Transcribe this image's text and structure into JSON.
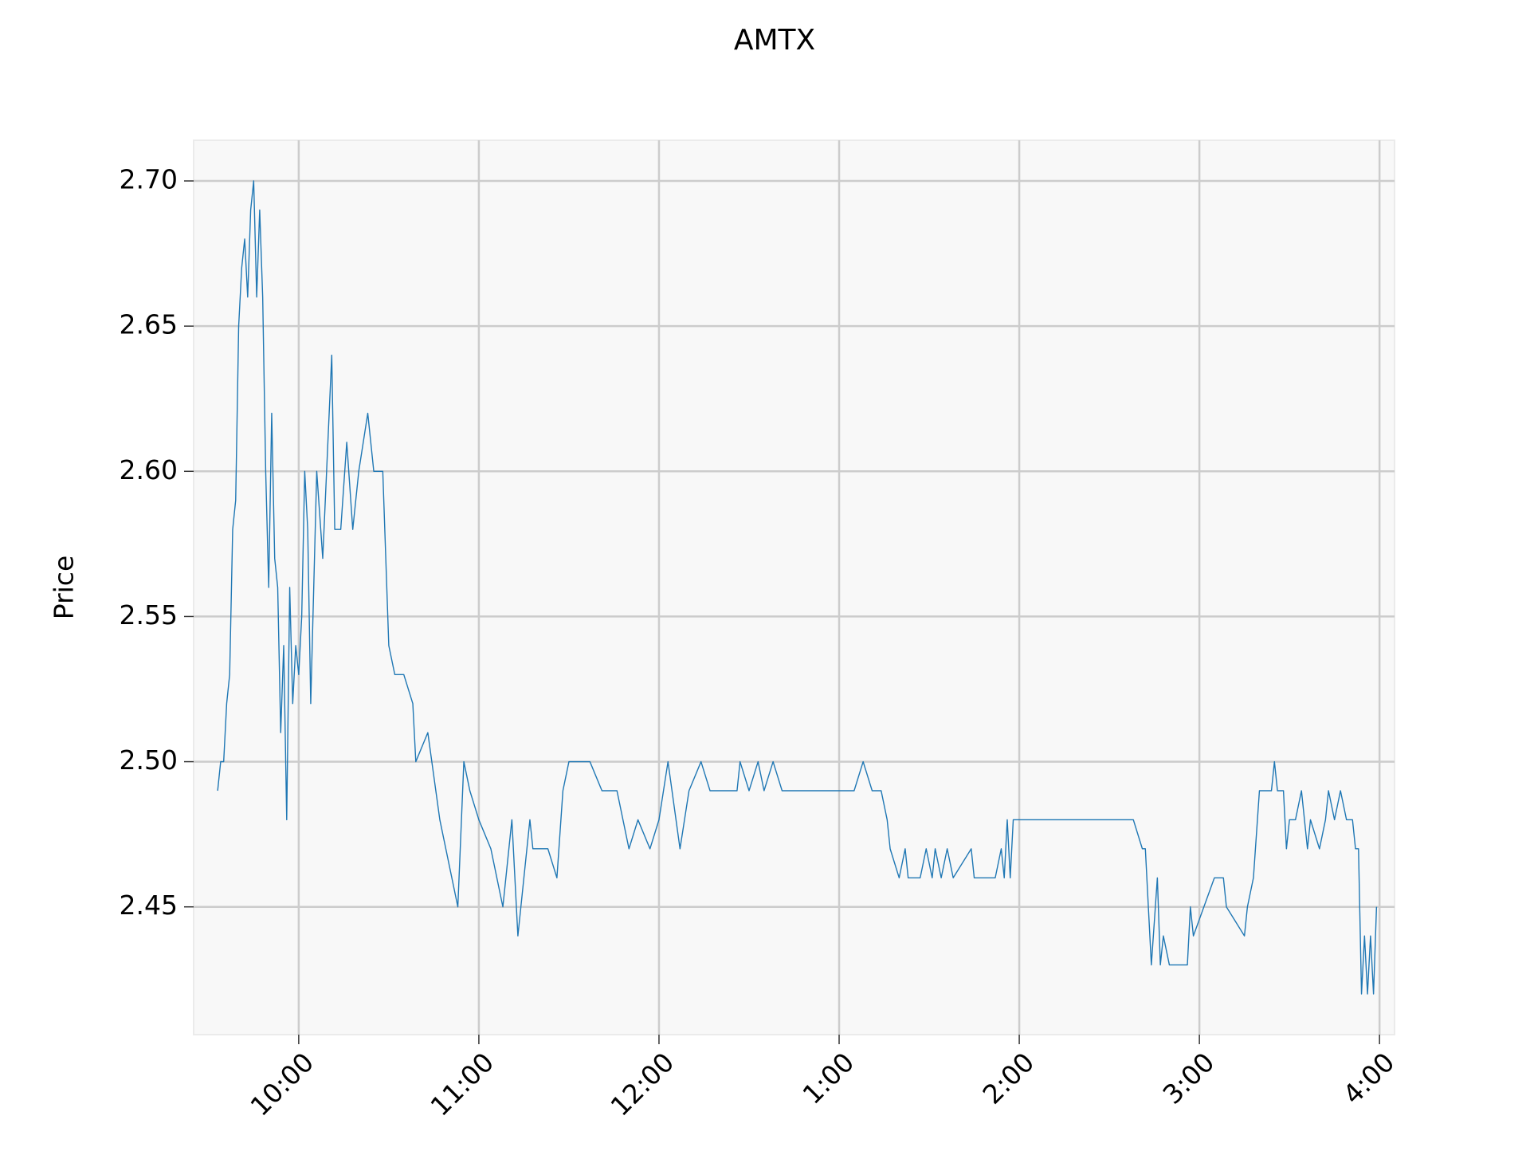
{
  "chart_data": {
    "type": "line",
    "title": "AMTX",
    "ylabel": "Price",
    "color": "#1f77b4",
    "grid": true,
    "xlim": [
      "9:25",
      "4:05"
    ],
    "xticks": [
      "10:00",
      "11:00",
      "12:00",
      "1:00",
      "2:00",
      "3:00",
      "4:00"
    ],
    "ylim": [
      2.406,
      2.714
    ],
    "yticks": [
      {
        "value": 2.45,
        "label": "2.45"
      },
      {
        "value": 2.5,
        "label": "2.50"
      },
      {
        "value": 2.55,
        "label": "2.55"
      },
      {
        "value": 2.6,
        "label": "2.60"
      },
      {
        "value": 2.65,
        "label": "2.65"
      },
      {
        "value": 2.7,
        "label": "2.70"
      }
    ],
    "x": [
      "9:33",
      "9:34",
      "9:35",
      "9:36",
      "9:37",
      "9:38",
      "9:39",
      "9:40",
      "9:41",
      "9:42",
      "9:43",
      "9:44",
      "9:45",
      "9:46",
      "9:47",
      "9:48",
      "9:49",
      "9:50",
      "9:51",
      "9:52",
      "9:53",
      "9:54",
      "9:55",
      "9:56",
      "9:57",
      "9:58",
      "9:59",
      "10:00",
      "10:01",
      "10:02",
      "10:03",
      "10:04",
      "10:06",
      "10:08",
      "10:11",
      "10:12",
      "10:14",
      "10:16",
      "10:18",
      "10:20",
      "10:23",
      "10:25",
      "10:28",
      "10:30",
      "10:32",
      "10:35",
      "10:38",
      "10:39",
      "10:43",
      "10:47",
      "10:49",
      "10:53",
      "10:55",
      "10:57",
      "11:00",
      "11:04",
      "11:08",
      "11:11",
      "11:13",
      "11:17",
      "11:18",
      "11:23",
      "11:26",
      "11:28",
      "11:30",
      "11:37",
      "11:41",
      "11:46",
      "11:50",
      "11:53",
      "11:57",
      "12:00",
      "12:03",
      "12:07",
      "12:10",
      "12:14",
      "12:17",
      "12:26",
      "12:27",
      "12:30",
      "12:33",
      "12:35",
      "12:38",
      "12:41",
      "1:05",
      "1:08",
      "1:11",
      "1:14",
      "1:16",
      "1:17",
      "1:20",
      "1:22",
      "1:23",
      "1:27",
      "1:29",
      "1:31",
      "1:32",
      "1:34",
      "1:36",
      "1:38",
      "1:44",
      "1:45",
      "1:52",
      "1:54",
      "1:55",
      "1:56",
      "1:57",
      "1:58",
      "2:38",
      "2:41",
      "2:42",
      "2:44",
      "2:46",
      "2:47",
      "2:48",
      "2:50",
      "2:56",
      "2:57",
      "2:58",
      "3:05",
      "3:08",
      "3:09",
      "3:15",
      "3:16",
      "3:18",
      "3:20",
      "3:24",
      "3:25",
      "3:26",
      "3:28",
      "3:29",
      "3:30",
      "3:32",
      "3:34",
      "3:36",
      "3:37",
      "3:40",
      "3:42",
      "3:43",
      "3:45",
      "3:47",
      "3:49",
      "3:51",
      "3:52",
      "3:53",
      "3:54",
      "3:55",
      "3:56",
      "3:57",
      "3:58",
      "3:59"
    ],
    "values": [
      2.49,
      2.5,
      2.5,
      2.52,
      2.53,
      2.58,
      2.59,
      2.65,
      2.67,
      2.68,
      2.66,
      2.69,
      2.7,
      2.66,
      2.69,
      2.66,
      2.6,
      2.56,
      2.62,
      2.57,
      2.56,
      2.51,
      2.54,
      2.48,
      2.56,
      2.52,
      2.54,
      2.53,
      2.55,
      2.6,
      2.58,
      2.52,
      2.6,
      2.57,
      2.64,
      2.58,
      2.58,
      2.61,
      2.58,
      2.6,
      2.62,
      2.6,
      2.6,
      2.54,
      2.53,
      2.53,
      2.52,
      2.5,
      2.51,
      2.48,
      2.47,
      2.45,
      2.5,
      2.49,
      2.48,
      2.47,
      2.45,
      2.48,
      2.44,
      2.48,
      2.47,
      2.47,
      2.46,
      2.49,
      2.5,
      2.5,
      2.49,
      2.49,
      2.47,
      2.48,
      2.47,
      2.48,
      2.5,
      2.47,
      2.49,
      2.5,
      2.49,
      2.49,
      2.5,
      2.49,
      2.5,
      2.49,
      2.5,
      2.49,
      2.49,
      2.5,
      2.49,
      2.49,
      2.48,
      2.47,
      2.46,
      2.47,
      2.46,
      2.46,
      2.47,
      2.46,
      2.47,
      2.46,
      2.47,
      2.46,
      2.47,
      2.46,
      2.46,
      2.47,
      2.46,
      2.48,
      2.46,
      2.48,
      2.48,
      2.47,
      2.47,
      2.43,
      2.46,
      2.43,
      2.44,
      2.43,
      2.43,
      2.45,
      2.44,
      2.46,
      2.46,
      2.45,
      2.44,
      2.45,
      2.46,
      2.49,
      2.49,
      2.5,
      2.49,
      2.49,
      2.47,
      2.48,
      2.48,
      2.49,
      2.47,
      2.48,
      2.47,
      2.48,
      2.49,
      2.48,
      2.49,
      2.48,
      2.48,
      2.47,
      2.47,
      2.42,
      2.44,
      2.42,
      2.44,
      2.42,
      2.45
    ]
  }
}
